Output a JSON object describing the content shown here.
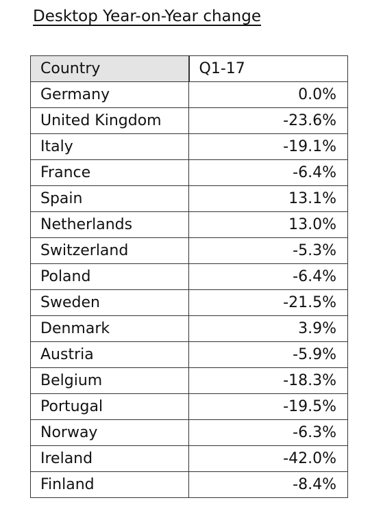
{
  "title": "Desktop Year-on-Year change",
  "table": {
    "headers": [
      "Country",
      "Q1-17"
    ],
    "rows": [
      {
        "country": "Germany",
        "value": "0.0%"
      },
      {
        "country": "United Kingdom",
        "value": "-23.6%"
      },
      {
        "country": "Italy",
        "value": "-19.1%"
      },
      {
        "country": "France",
        "value": "-6.4%"
      },
      {
        "country": "Spain",
        "value": "13.1%"
      },
      {
        "country": "Netherlands",
        "value": "13.0%"
      },
      {
        "country": "Switzerland",
        "value": "-5.3%"
      },
      {
        "country": "Poland",
        "value": "-6.4%"
      },
      {
        "country": "Sweden",
        "value": "-21.5%"
      },
      {
        "country": "Denmark",
        "value": "3.9%"
      },
      {
        "country": "Austria",
        "value": "-5.9%"
      },
      {
        "country": "Belgium",
        "value": "-18.3%"
      },
      {
        "country": "Portugal",
        "value": "-19.5%"
      },
      {
        "country": "Norway",
        "value": "-6.3%"
      },
      {
        "country": "Ireland",
        "value": "-42.0%"
      },
      {
        "country": "Finland",
        "value": "-8.4%"
      }
    ]
  },
  "colors": {
    "header_background": "#e4e4e4",
    "border": "#333333",
    "text": "#111111"
  }
}
